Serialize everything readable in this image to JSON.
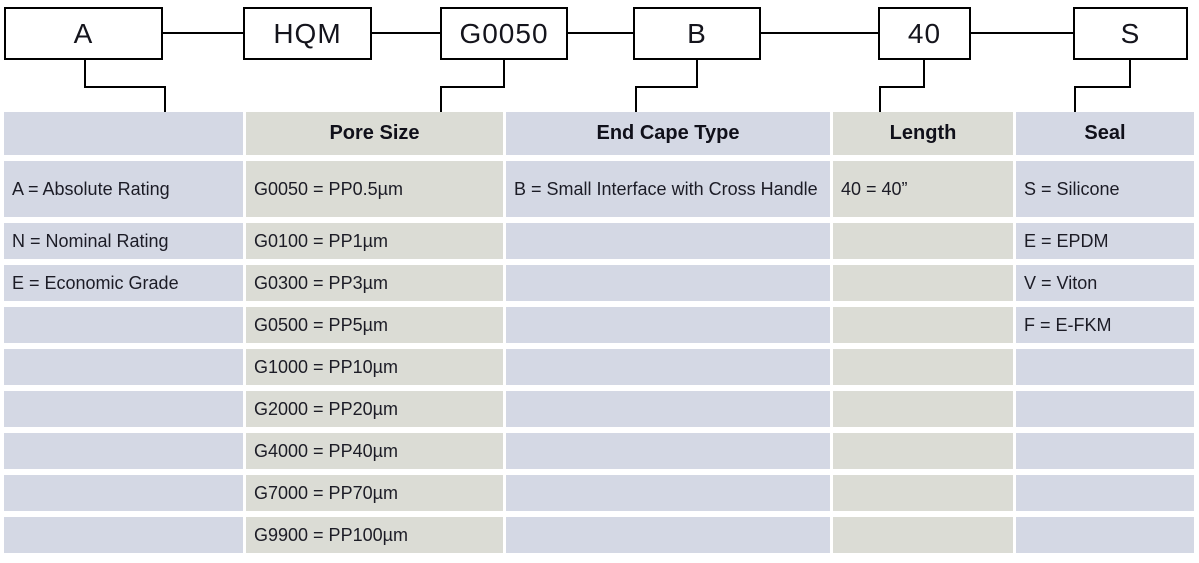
{
  "diagram": {
    "boxes": [
      {
        "label": "A"
      },
      {
        "label": "HQM"
      },
      {
        "label": "G0050"
      },
      {
        "label": "B"
      },
      {
        "label": "40"
      },
      {
        "label": "S"
      }
    ]
  },
  "table": {
    "headers": [
      "",
      "Pore Size",
      "End Cape Type",
      "Length",
      "Seal"
    ],
    "rows": [
      [
        "A = Absolute Rating",
        "G0050 = PP0.5µm",
        "B = Small Interface with Cross Handle",
        "40 = 40”",
        "S = Silicone"
      ],
      [
        "N = Nominal Rating",
        "G0100 = PP1µm",
        "",
        "",
        "E = EPDM"
      ],
      [
        "E = Economic Grade",
        "G0300 = PP3µm",
        "",
        "",
        "V = Viton"
      ],
      [
        "",
        "G0500 = PP5µm",
        "",
        "",
        "F = E-FKM"
      ],
      [
        "",
        "G1000 = PP10µm",
        "",
        "",
        ""
      ],
      [
        "",
        "G2000 = PP20µm",
        "",
        "",
        ""
      ],
      [
        "",
        "G4000 = PP40µm",
        "",
        "",
        ""
      ],
      [
        "",
        "G7000 = PP70µm",
        "",
        "",
        ""
      ],
      [
        "",
        "G9900 = PP100µm",
        "",
        "",
        ""
      ]
    ]
  },
  "colors": {
    "column_lavender": "#d4d8e4",
    "column_gray": "#dbdcd5",
    "connector_line": "#000000",
    "box_border": "#000000",
    "text": "#1c1c26"
  }
}
